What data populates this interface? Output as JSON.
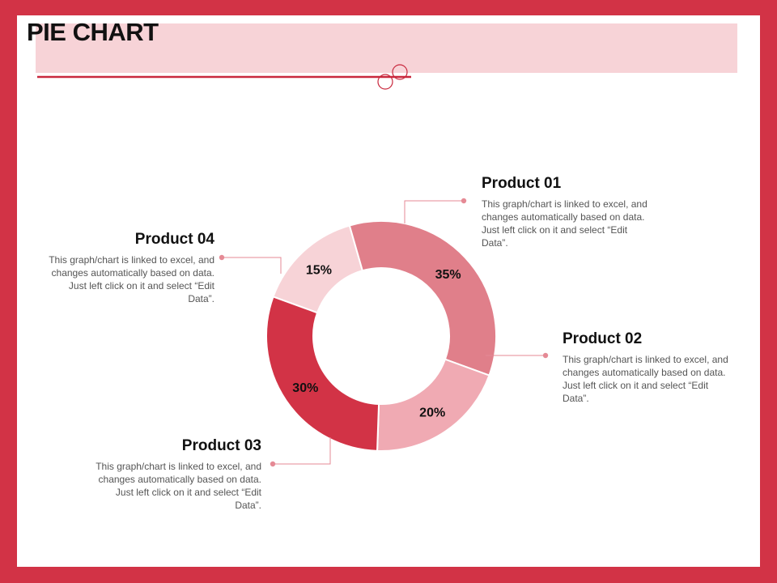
{
  "slide": {
    "title": "PIE CHART"
  },
  "colors": {
    "frame": "#d23346",
    "title_band": "#f7d3d7",
    "accent_line": "#c9283d",
    "connector": "#e58a95"
  },
  "labels": [
    {
      "name": "Product 01",
      "description": "This graph/chart is linked to excel, and changes automatically based on data. Just left click on it and select “Edit Data”."
    },
    {
      "name": "Product 02",
      "description": "This graph/chart is linked to excel, and changes automatically based on data. Just left click on it and select “Edit Data”."
    },
    {
      "name": "Product 03",
      "description": "This graph/chart is linked to excel, and changes automatically based on data. Just left click on it and select “Edit Data”."
    },
    {
      "name": "Product 04",
      "description": "This graph/chart is linked to excel, and changes automatically based on data. Just left click on it and select “Edit Data”."
    }
  ],
  "chart_data": {
    "type": "pie",
    "donut": true,
    "categories": [
      "Product 01",
      "Product 02",
      "Product 03",
      "Product 04"
    ],
    "values": [
      15,
      35,
      20,
      30
    ],
    "value_labels": [
      "15%",
      "35%",
      "20%",
      "30%"
    ],
    "colors": [
      "#f7d3d7",
      "#e07f8a",
      "#f0aab3",
      "#d23346"
    ],
    "legend": "callouts"
  }
}
